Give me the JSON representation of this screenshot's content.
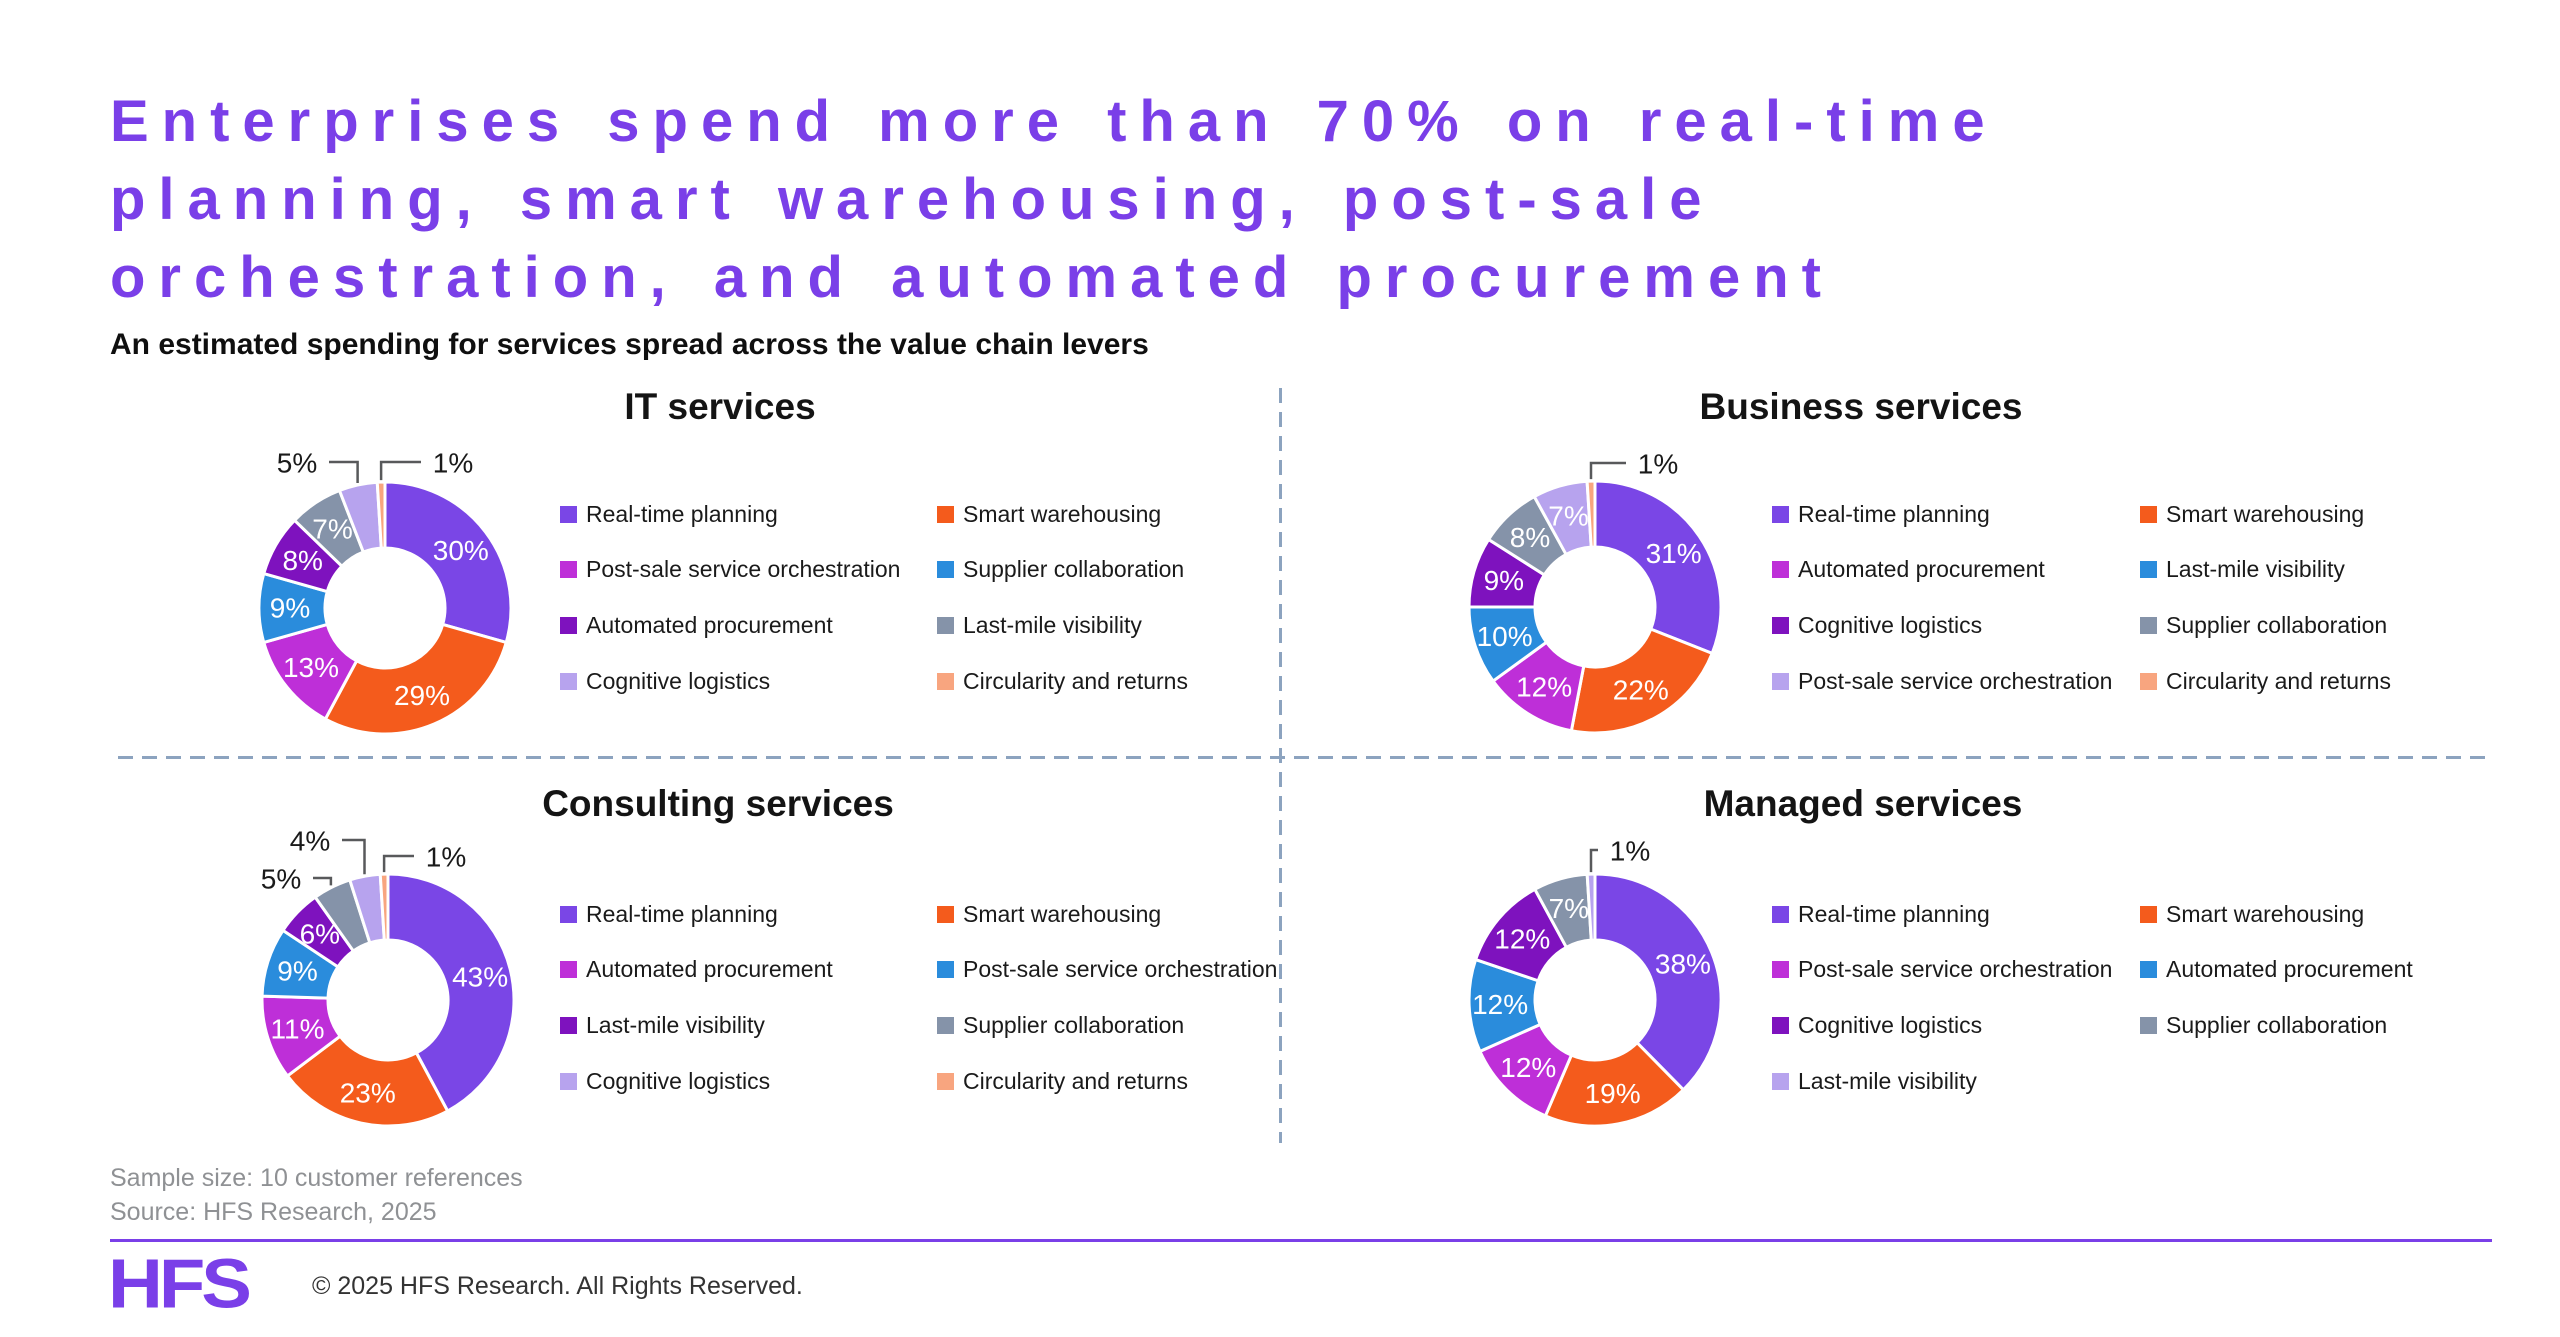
{
  "title": "Enterprises spend more than 70% on real-time\nplanning, smart warehousing, post-sale\norchestration, and automated procurement",
  "subtitle": "An estimated spending for services spread across the value chain levers",
  "palette": {
    "purple": "#7A46E6",
    "orange": "#F45B1C",
    "magenta": "#BE2FD8",
    "blue": "#2A8CDC",
    "violet": "#7E12BE",
    "gray": "#8593A9",
    "lavender": "#B7A3EE",
    "peach": "#F8A57F"
  },
  "accent_color": "#7A3FE8",
  "divider_color": "#8CA3BF",
  "chart_data": [
    {
      "type": "pie",
      "variant": "donut",
      "title": "IT services",
      "unit": "percent",
      "legend_position": "right-two-columns",
      "slices": [
        {
          "label": "Real-time planning",
          "value": 30,
          "color": "purple"
        },
        {
          "label": "Smart warehousing",
          "value": 29,
          "color": "orange"
        },
        {
          "label": "Post-sale service orchestration",
          "value": 13,
          "color": "magenta"
        },
        {
          "label": "Supplier collaboration",
          "value": 9,
          "color": "blue"
        },
        {
          "label": "Automated procurement",
          "value": 8,
          "color": "violet"
        },
        {
          "label": "Last-mile visibility",
          "value": 7,
          "color": "gray"
        },
        {
          "label": "Cognitive logistics",
          "value": 5,
          "color": "lavender",
          "callout": true
        },
        {
          "label": "Circularity and returns",
          "value": 1,
          "color": "peach",
          "callout": true
        }
      ]
    },
    {
      "type": "pie",
      "variant": "donut",
      "title": "Business services",
      "unit": "percent",
      "legend_position": "right-two-columns",
      "slices": [
        {
          "label": "Real-time planning",
          "value": 31,
          "color": "purple"
        },
        {
          "label": "Smart warehousing",
          "value": 22,
          "color": "orange"
        },
        {
          "label": "Automated procurement",
          "value": 12,
          "color": "magenta"
        },
        {
          "label": "Last-mile visibility",
          "value": 10,
          "color": "blue"
        },
        {
          "label": "Cognitive logistics",
          "value": 9,
          "color": "violet"
        },
        {
          "label": "Supplier collaboration",
          "value": 8,
          "color": "gray"
        },
        {
          "label": "Post-sale service orchestration",
          "value": 7,
          "color": "lavender"
        },
        {
          "label": "Circularity and returns",
          "value": 1,
          "color": "peach",
          "callout": true
        }
      ]
    },
    {
      "type": "pie",
      "variant": "donut",
      "title": "Consulting services",
      "unit": "percent",
      "legend_position": "right-two-columns",
      "slices": [
        {
          "label": "Real-time planning",
          "value": 43,
          "color": "purple"
        },
        {
          "label": "Smart warehousing",
          "value": 23,
          "color": "orange"
        },
        {
          "label": "Automated procurement",
          "value": 11,
          "color": "magenta"
        },
        {
          "label": "Post-sale service orchestration",
          "value": 9,
          "color": "blue"
        },
        {
          "label": "Last-mile visibility",
          "value": 6,
          "color": "violet"
        },
        {
          "label": "Supplier collaboration",
          "value": 5,
          "color": "gray",
          "callout": true
        },
        {
          "label": "Cognitive logistics",
          "value": 4,
          "color": "lavender",
          "callout": true
        },
        {
          "label": "Circularity and returns",
          "value": 1,
          "color": "peach",
          "callout": true
        }
      ]
    },
    {
      "type": "pie",
      "variant": "donut",
      "title": "Managed services",
      "unit": "percent",
      "legend_position": "right-two-columns",
      "slices": [
        {
          "label": "Real-time planning",
          "value": 38,
          "color": "purple"
        },
        {
          "label": "Smart warehousing",
          "value": 19,
          "color": "orange"
        },
        {
          "label": "Post-sale service orchestration",
          "value": 12,
          "color": "magenta"
        },
        {
          "label": "Automated procurement",
          "value": 12,
          "color": "blue"
        },
        {
          "label": "Cognitive logistics",
          "value": 12,
          "color": "violet"
        },
        {
          "label": "Supplier collaboration",
          "value": 7,
          "color": "gray"
        },
        {
          "label": "Last-mile visibility",
          "value": 1,
          "color": "lavender",
          "callout": true
        }
      ]
    }
  ],
  "footnotes": {
    "sample": "Sample size: 10 customer references",
    "source": "Source: HFS Research, 2025"
  },
  "footer": {
    "logo": "HFS",
    "copyright": "© 2025 HFS Research. All Rights Reserved."
  }
}
